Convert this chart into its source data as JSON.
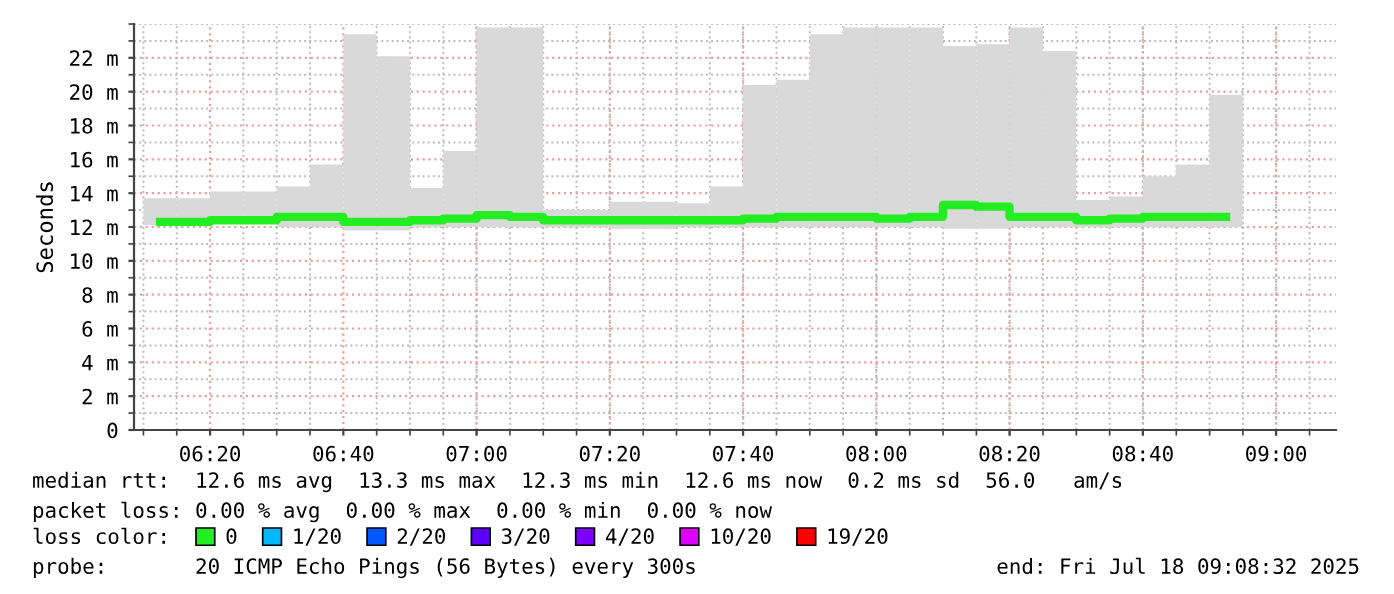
{
  "chart_data": {
    "type": "bar",
    "ylabel": "Seconds",
    "x": [
      6.2083,
      6.2917,
      6.375,
      6.4583,
      6.5417,
      6.625,
      6.7083,
      6.7917,
      6.875,
      6.9583,
      7.0417,
      7.125,
      7.2083,
      7.2917,
      7.375,
      7.4583,
      7.5417,
      7.625,
      7.7083,
      7.7917,
      7.875,
      7.9583,
      8.0417,
      8.125,
      8.2083,
      8.2917,
      8.375,
      8.4583,
      8.5417,
      8.625,
      8.7083,
      8.7917,
      8.875
    ],
    "series": [
      {
        "color": "#d9d9d9",
        "base": [
          12.1,
          12.1,
          12.2,
          12.2,
          12.0,
          12.0,
          11.8,
          11.8,
          12.0,
          12.0,
          12.0,
          12.0,
          12.0,
          12.0,
          11.9,
          11.9,
          12.0,
          12.0,
          12.0,
          12.0,
          12.0,
          12.0,
          12.0,
          12.0,
          11.9,
          11.9,
          12.0,
          12.0,
          12.0,
          12.0,
          12.0,
          12.0,
          12.0
        ],
        "values": [
          1.6,
          1.6,
          1.9,
          1.9,
          2.4,
          3.7,
          11.6,
          10.3,
          2.3,
          4.5,
          11.8,
          11.8,
          1.0,
          1.0,
          1.6,
          1.6,
          1.4,
          2.4,
          8.4,
          8.7,
          11.4,
          11.8,
          11.8,
          11.8,
          10.8,
          10.9,
          11.8,
          10.4,
          1.6,
          1.8,
          3.0,
          3.7,
          7.8
        ]
      },
      {
        "type": "step",
        "name": "0",
        "color": "#22ee22",
        "values": [
          12.3,
          12.3,
          12.4,
          12.4,
          12.6,
          12.6,
          12.3,
          12.3,
          12.4,
          12.5,
          12.7,
          12.6,
          12.4,
          12.4,
          12.4,
          12.4,
          12.4,
          12.4,
          12.5,
          12.6,
          12.6,
          12.6,
          12.5,
          12.6,
          13.3,
          13.2,
          12.6,
          12.6,
          12.4,
          12.5,
          12.6,
          12.6,
          12.6
        ]
      },
      {
        "type": "step",
        "name": "1/20",
        "color": "#00b8ff",
        "values": [
          null,
          null,
          null,
          null,
          null,
          null,
          null,
          null,
          null,
          null,
          null,
          null,
          null,
          null,
          null,
          null,
          null,
          null,
          null,
          null,
          null,
          null,
          null,
          null,
          null,
          null,
          null,
          null,
          null,
          null,
          null,
          null,
          null
        ]
      },
      {
        "type": "step",
        "name": "2/20",
        "color": "#0059ff",
        "values": [
          null,
          null,
          null,
          null,
          null,
          null,
          null,
          null,
          null,
          null,
          null,
          null,
          null,
          null,
          null,
          null,
          null,
          null,
          null,
          null,
          null,
          null,
          null,
          null,
          null,
          null,
          null,
          null,
          null,
          null,
          null,
          null,
          null
        ]
      },
      {
        "type": "step",
        "name": "3/20",
        "color": "#5e00ff",
        "values": [
          null,
          null,
          null,
          null,
          null,
          null,
          null,
          null,
          null,
          null,
          null,
          null,
          null,
          null,
          null,
          null,
          null,
          null,
          null,
          null,
          null,
          null,
          null,
          null,
          null,
          null,
          null,
          null,
          null,
          null,
          null,
          null,
          null
        ]
      },
      {
        "type": "step",
        "name": "4/20",
        "color": "#7e00ff",
        "values": [
          null,
          null,
          null,
          null,
          null,
          null,
          null,
          null,
          null,
          null,
          null,
          null,
          null,
          null,
          null,
          null,
          null,
          null,
          null,
          null,
          null,
          null,
          null,
          null,
          null,
          null,
          null,
          null,
          null,
          null,
          null,
          null,
          null
        ]
      },
      {
        "type": "step",
        "name": "10/20",
        "color": "#dd00ff",
        "values": [
          null,
          null,
          null,
          null,
          null,
          null,
          null,
          null,
          null,
          null,
          null,
          null,
          null,
          null,
          null,
          null,
          null,
          null,
          null,
          null,
          null,
          null,
          null,
          null,
          null,
          null,
          null,
          null,
          null,
          null,
          null,
          null,
          null
        ]
      },
      {
        "type": "step",
        "name": "19/20",
        "color": "#ff0000",
        "values": [
          null,
          null,
          null,
          null,
          null,
          null,
          null,
          null,
          null,
          null,
          null,
          null,
          null,
          null,
          null,
          null,
          null,
          null,
          null,
          null,
          null,
          null,
          null,
          null,
          null,
          null,
          null,
          null,
          null,
          null,
          null,
          null,
          null
        ]
      }
    ],
    "legend_title": "loss color:",
    "legend": "bottom",
    "xlim": [
      6.143,
      9.15
    ],
    "xticks": [
      {
        "value": 6.3333,
        "label": "06:20"
      },
      {
        "value": 6.6667,
        "label": "06:40"
      },
      {
        "value": 7,
        "label": "07:00"
      },
      {
        "value": 7.3333,
        "label": "07:20"
      },
      {
        "value": 7.6667,
        "label": "07:40"
      },
      {
        "value": 8,
        "label": "08:00"
      },
      {
        "value": 8.3333,
        "label": "08:20"
      },
      {
        "value": 8.6667,
        "label": "08:40"
      },
      {
        "value": 9,
        "label": "09:00"
      }
    ],
    "ylim": [
      0,
      24
    ],
    "yticks": [
      0,
      {
        "value": 2,
        "label": "2 m"
      },
      {
        "value": 4,
        "label": "4 m"
      },
      {
        "value": 6,
        "label": "6 m"
      },
      {
        "value": 8,
        "label": "8 m"
      },
      {
        "value": 10,
        "label": "10 m"
      },
      {
        "value": 12,
        "label": "12 m"
      },
      {
        "value": 14,
        "label": "14 m"
      },
      {
        "value": 16,
        "label": "16 m"
      },
      {
        "value": 18,
        "label": "18 m"
      },
      {
        "value": 20,
        "label": "20 m"
      },
      {
        "value": 22,
        "label": "22 m"
      }
    ],
    "grid": true,
    "annotations": [
      "median rtt:  12.6 ms avg  13.3 ms max  12.3 ms min  12.6 ms now  0.2 ms sd  56.0   am/s",
      "packet loss: 0.00 % avg  0.00 % max  0.00 % min  0.00 % now",
      "probe:       20 ICMP Echo Pings (56 Bytes) every 300s",
      "end: Fri Jul 18 09:08:32 2025"
    ]
  }
}
